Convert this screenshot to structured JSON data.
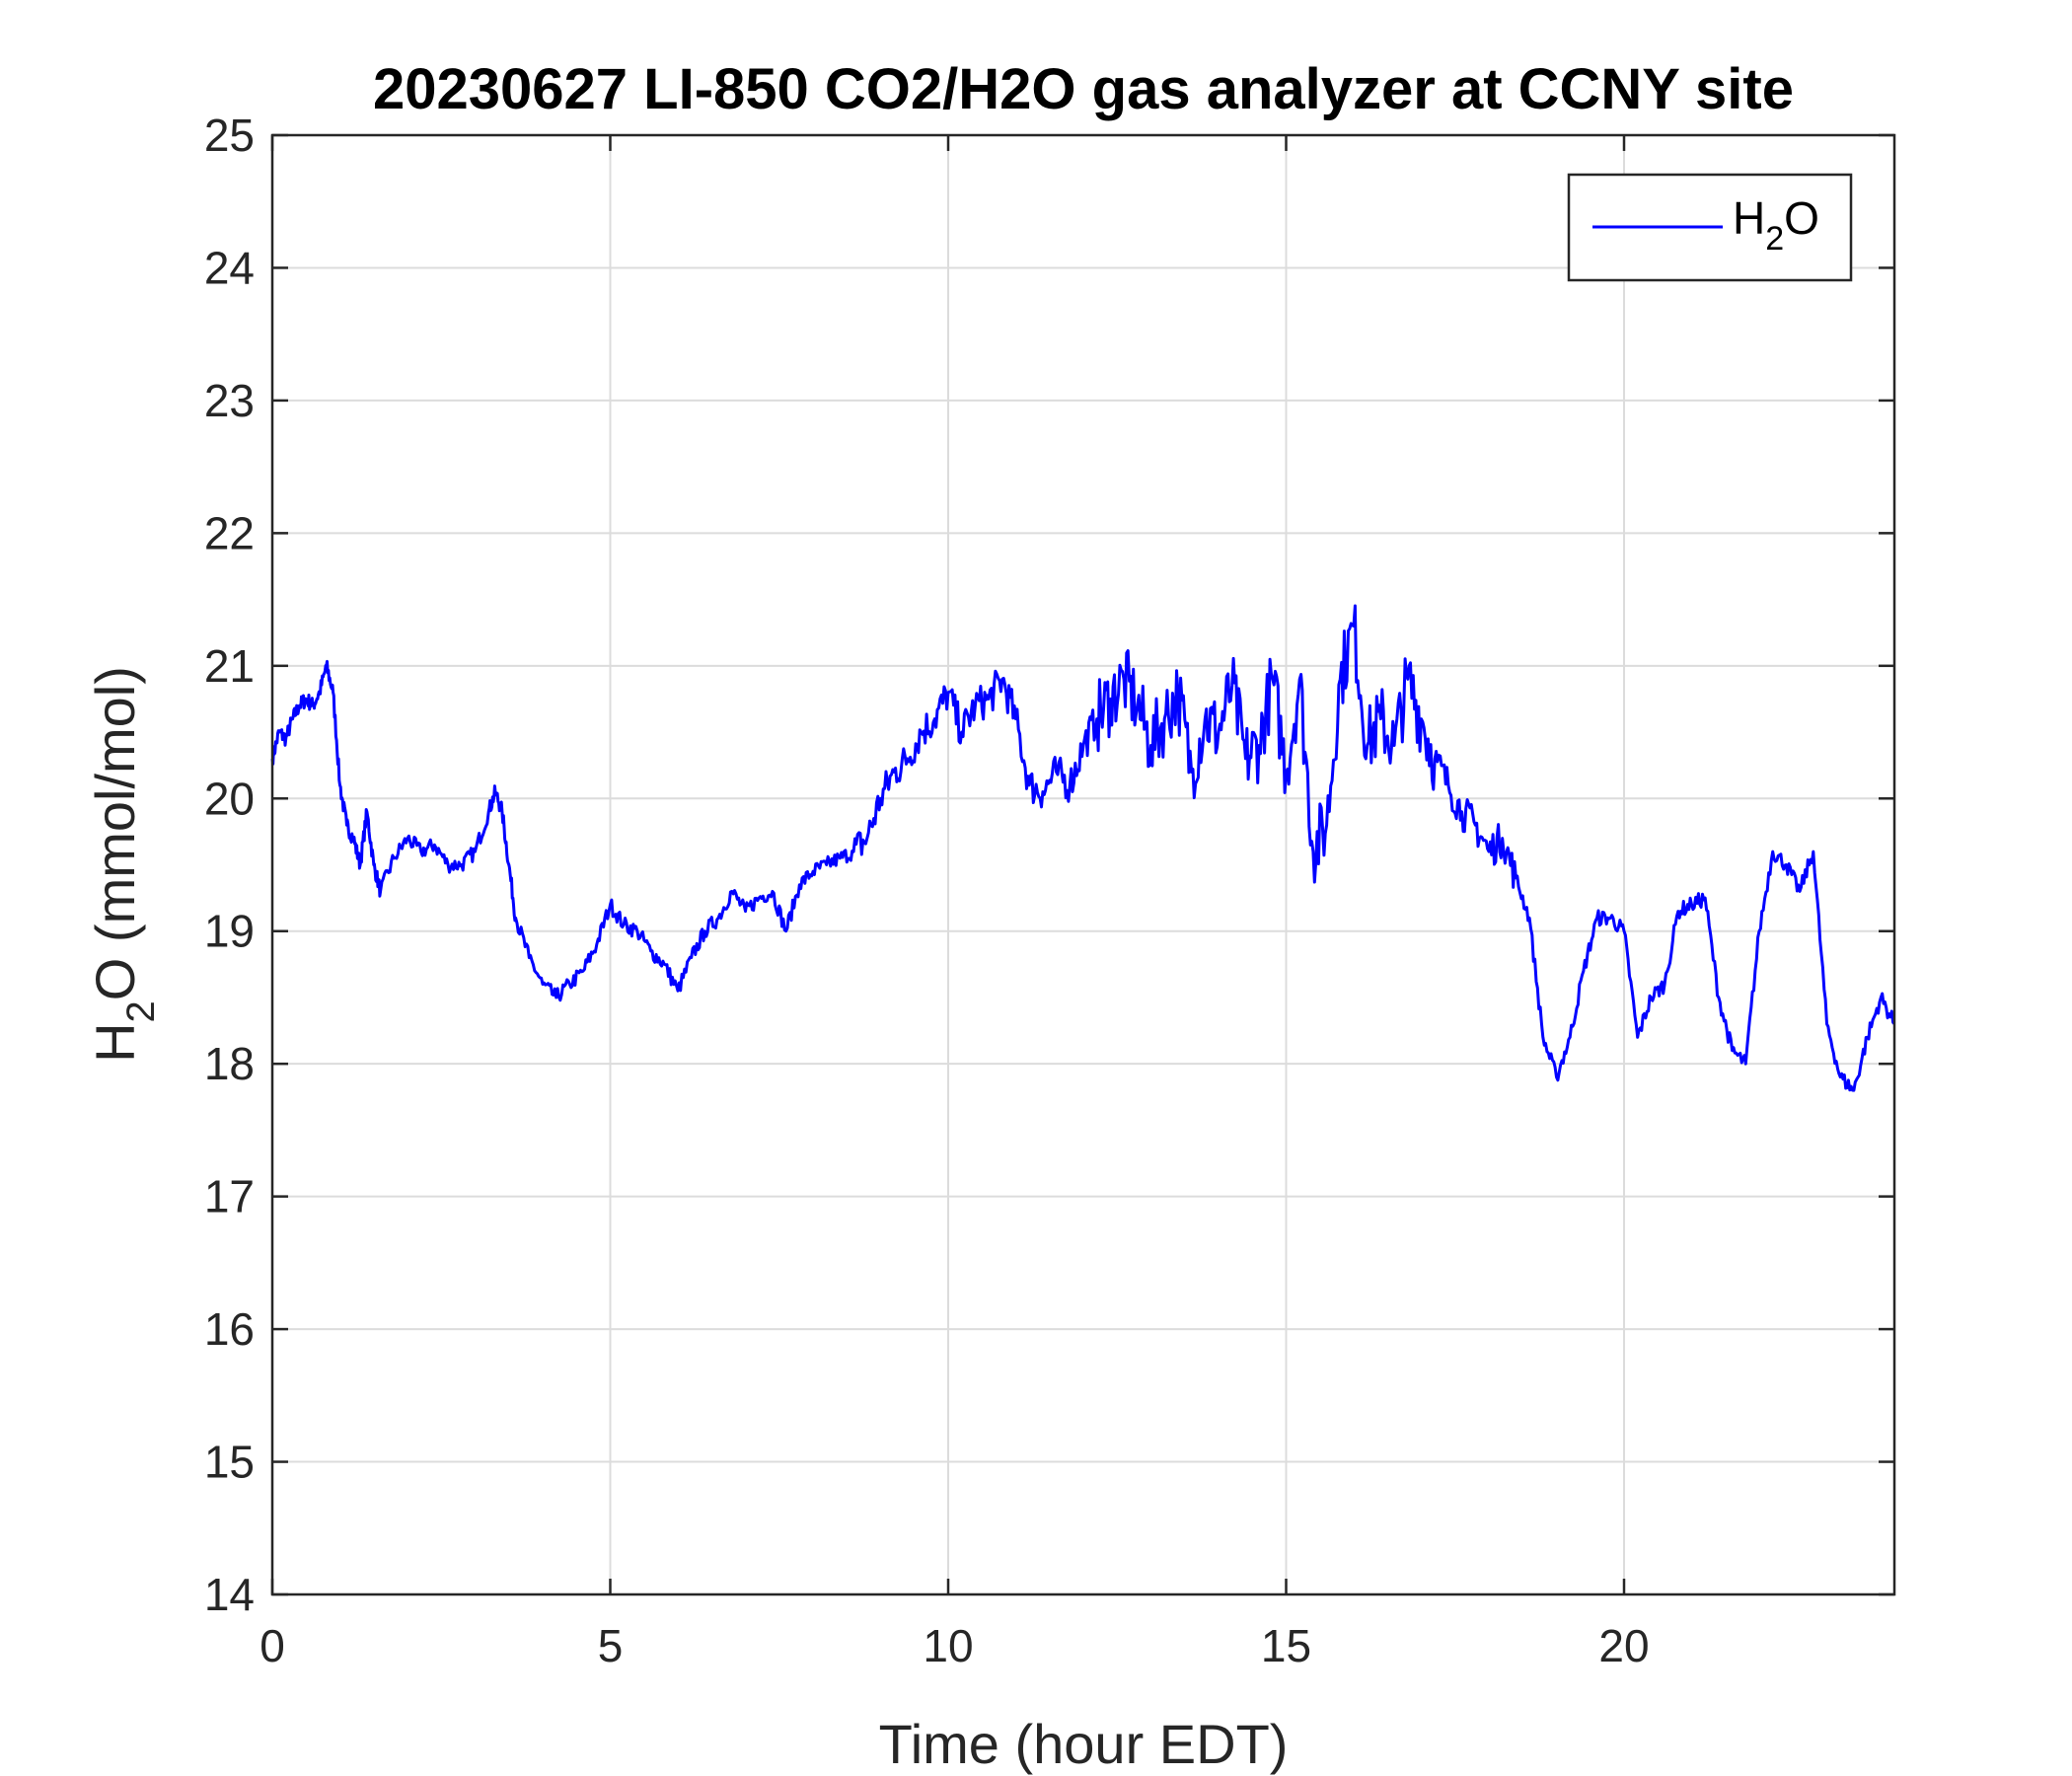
{
  "chart_data": {
    "type": "line",
    "title": "20230627 LI-850 CO2/H2O gas analyzer at CCNY site",
    "xlabel": "Time (hour EDT)",
    "ylabel": {
      "main": "H",
      "sub": "2",
      "rest": "O (mmol/mol)"
    },
    "xlim": [
      0,
      24
    ],
    "ylim": [
      14,
      25
    ],
    "xticks": [
      0,
      5,
      10,
      15,
      20
    ],
    "yticks": [
      14,
      15,
      16,
      17,
      18,
      19,
      20,
      21,
      22,
      23,
      24,
      25
    ],
    "grid": true,
    "legend_position": "top-right",
    "colors": {
      "series": "#0000ff",
      "grid": "#dcdcdc",
      "axis": "#262626"
    },
    "series": [
      {
        "name": {
          "main": "H",
          "sub": "2",
          "rest": "O"
        },
        "x": [
          0,
          0.1,
          0.2,
          0.3,
          0.4,
          0.5,
          0.6,
          0.7,
          0.8,
          0.9,
          1.0,
          1.1,
          1.2,
          1.3,
          1.4,
          1.5,
          1.6,
          1.8,
          2.0,
          2.2,
          2.4,
          2.6,
          2.8,
          3.0,
          3.2,
          3.3,
          3.4,
          3.5,
          3.6,
          3.8,
          4.0,
          4.2,
          4.4,
          4.6,
          4.8,
          5.0,
          5.2,
          5.4,
          5.6,
          5.8,
          6.0,
          6.2,
          6.4,
          6.6,
          6.8,
          7.0,
          7.2,
          7.4,
          7.6,
          7.8,
          8.0,
          8.2,
          8.4,
          8.6,
          8.8,
          9.0,
          9.2,
          9.4,
          9.6,
          9.8,
          10.0,
          10.2,
          10.4,
          10.6,
          10.8,
          11.0,
          11.2,
          11.4,
          11.6,
          11.8,
          12.0,
          12.2,
          12.4,
          12.6,
          12.8,
          13.0,
          13.2,
          13.4,
          13.6,
          13.8,
          14.0,
          14.2,
          14.4,
          14.6,
          14.8,
          15.0,
          15.2,
          15.4,
          15.6,
          15.8,
          16.0,
          16.2,
          16.4,
          16.6,
          16.8,
          17.0,
          17.2,
          17.4,
          17.6,
          17.8,
          18.0,
          18.2,
          18.4,
          18.6,
          18.8,
          19.0,
          19.2,
          19.4,
          19.6,
          19.8,
          20.0,
          20.2,
          20.4,
          20.6,
          20.8,
          21.0,
          21.2,
          21.4,
          21.6,
          21.8,
          22.0,
          22.2,
          22.4,
          22.6,
          22.8,
          23.0,
          23.2,
          23.4,
          23.6,
          23.8,
          24.0
        ],
        "y": [
          20.3,
          20.5,
          20.45,
          20.6,
          20.7,
          20.75,
          20.7,
          20.8,
          21.0,
          20.8,
          20.1,
          19.8,
          19.7,
          19.5,
          19.9,
          19.5,
          19.3,
          19.55,
          19.7,
          19.6,
          19.65,
          19.5,
          19.5,
          19.6,
          19.9,
          20.05,
          19.9,
          19.5,
          19.1,
          18.8,
          18.6,
          18.5,
          18.6,
          18.7,
          18.9,
          19.2,
          19.05,
          19.0,
          18.85,
          18.75,
          18.55,
          18.8,
          19.0,
          19.1,
          19.3,
          19.15,
          19.25,
          19.3,
          19.0,
          19.35,
          19.45,
          19.5,
          19.55,
          19.6,
          19.7,
          20.0,
          20.2,
          20.3,
          20.5,
          20.6,
          20.8,
          20.5,
          20.7,
          20.75,
          20.9,
          20.6,
          20.1,
          20.05,
          20.2,
          20.1,
          20.4,
          20.6,
          20.75,
          20.9,
          20.7,
          20.4,
          20.6,
          20.8,
          20.2,
          20.6,
          20.5,
          20.85,
          20.3,
          20.4,
          20.9,
          20.2,
          20.9,
          19.6,
          19.8,
          20.9,
          21.3,
          20.4,
          20.6,
          20.4,
          20.9,
          20.6,
          20.3,
          20.1,
          19.9,
          19.8,
          19.6,
          19.7,
          19.4,
          19.1,
          18.2,
          17.9,
          18.2,
          18.7,
          19.1,
          19.1,
          19.0,
          18.2,
          18.5,
          18.6,
          19.15,
          19.2,
          19.25,
          18.5,
          18.1,
          18.0,
          19.0,
          19.6,
          19.5,
          19.3,
          19.6,
          18.3,
          17.9,
          17.8,
          18.2,
          18.5,
          18.3
        ],
        "annotations": []
      }
    ]
  }
}
